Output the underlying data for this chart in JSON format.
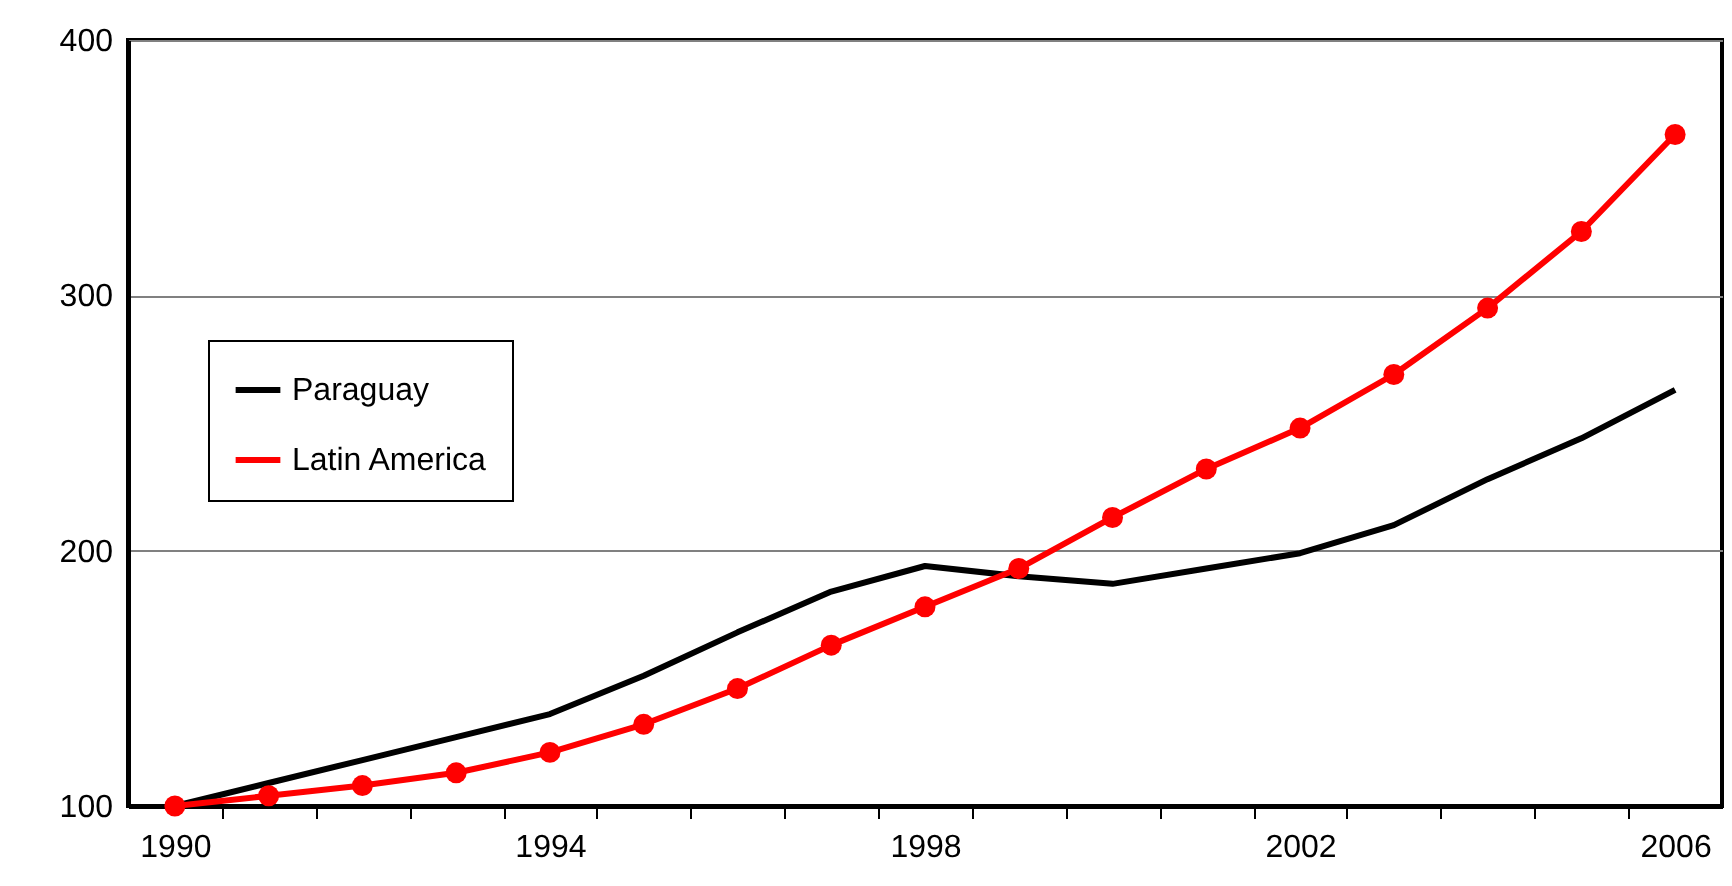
{
  "chart_data": {
    "type": "line",
    "x": [
      1990,
      1991,
      1992,
      1993,
      1994,
      1995,
      1996,
      1997,
      1998,
      1999,
      2000,
      2001,
      2002,
      2003,
      2004,
      2005,
      2006
    ],
    "series": [
      {
        "name": "Paraguay",
        "color": "#000000",
        "marker": "none",
        "values": [
          100,
          109,
          118,
          127,
          136,
          151,
          168,
          184,
          194,
          190,
          187,
          193,
          199,
          210,
          228,
          244,
          263
        ]
      },
      {
        "name": "Latin America",
        "color": "#ff0000",
        "marker": "circle",
        "values": [
          100,
          104,
          108,
          113,
          121,
          132,
          146,
          163,
          178,
          193,
          213,
          232,
          248,
          269,
          295,
          325,
          363
        ]
      }
    ],
    "xlim": [
      1989.5,
      2006.5
    ],
    "xticks": [
      1990,
      {
        "value": 1990.5,
        "label": null
      },
      {
        "value": 1991.5,
        "label": null
      },
      {
        "value": 1992.5,
        "label": null
      },
      {
        "value": 1993.5,
        "label": null
      },
      1994,
      {
        "value": 1994.5,
        "label": null
      },
      {
        "value": 1995.5,
        "label": null
      },
      {
        "value": 1996.5,
        "label": null
      },
      {
        "value": 1997.5,
        "label": null
      },
      1998,
      {
        "value": 1998.5,
        "label": null
      },
      {
        "value": 1999.5,
        "label": null
      },
      {
        "value": 2000.5,
        "label": null
      },
      {
        "value": 2001.5,
        "label": null
      },
      2002,
      {
        "value": 2002.5,
        "label": null
      },
      {
        "value": 2003.5,
        "label": null
      },
      {
        "value": 2004.5,
        "label": null
      },
      {
        "value": 2005.5,
        "label": null
      },
      2006
    ],
    "ylim": [
      100,
      400
    ],
    "yticks": [
      100,
      200,
      300,
      400
    ],
    "grid": "y",
    "legend": "left"
  }
}
